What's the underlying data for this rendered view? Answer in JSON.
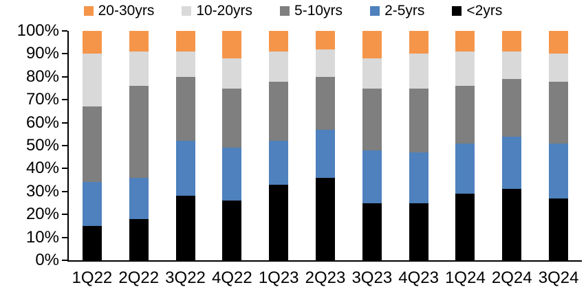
{
  "chart_data": {
    "type": "bar",
    "variant": "stacked-percent-column",
    "title": "",
    "xlabel": "",
    "ylabel": "",
    "ylim": [
      0,
      100
    ],
    "grid": false,
    "legend_position": "top",
    "legend_order": [
      "20-30yrs",
      "10-20yrs",
      "5-10yrs",
      "2-5yrs",
      "<2yrs"
    ],
    "y_ticks": [
      {
        "label": "100%",
        "value": 100
      },
      {
        "label": "90%",
        "value": 90
      },
      {
        "label": "80%",
        "value": 80
      },
      {
        "label": "70%",
        "value": 70
      },
      {
        "label": "60%",
        "value": 60
      },
      {
        "label": "50%",
        "value": 50
      },
      {
        "label": "40%",
        "value": 40
      },
      {
        "label": "30%",
        "value": 30
      },
      {
        "label": "20%",
        "value": 20
      },
      {
        "label": "10%",
        "value": 10
      },
      {
        "label": "0%",
        "value": 0
      }
    ],
    "categories": [
      "1Q22",
      "2Q22",
      "3Q22",
      "4Q22",
      "1Q23",
      "2Q23",
      "3Q23",
      "4Q23",
      "1Q24",
      "2Q24",
      "3Q24"
    ],
    "series": [
      {
        "name": "<2yrs",
        "color": "#000000",
        "values": [
          15,
          18,
          28,
          26,
          33,
          36,
          25,
          25,
          29,
          31,
          27
        ]
      },
      {
        "name": "2-5yrs",
        "color": "#4E81BD",
        "values": [
          19,
          18,
          24,
          23,
          19,
          21,
          23,
          22,
          22,
          23,
          24
        ]
      },
      {
        "name": "5-10yrs",
        "color": "#7F7F7F",
        "values": [
          33,
          40,
          28,
          26,
          26,
          23,
          27,
          28,
          25,
          25,
          27
        ]
      },
      {
        "name": "10-20yrs",
        "color": "#D9D9D9",
        "values": [
          23,
          15,
          11,
          13,
          13,
          12,
          13,
          15,
          15,
          12,
          12
        ]
      },
      {
        "name": "20-30yrs",
        "color": "#F5954A",
        "values": [
          10,
          9,
          9,
          12,
          9,
          8,
          12,
          10,
          9,
          9,
          10
        ]
      }
    ],
    "colors": {
      "axis": "#000000",
      "background": "#FFFFFF"
    }
  }
}
